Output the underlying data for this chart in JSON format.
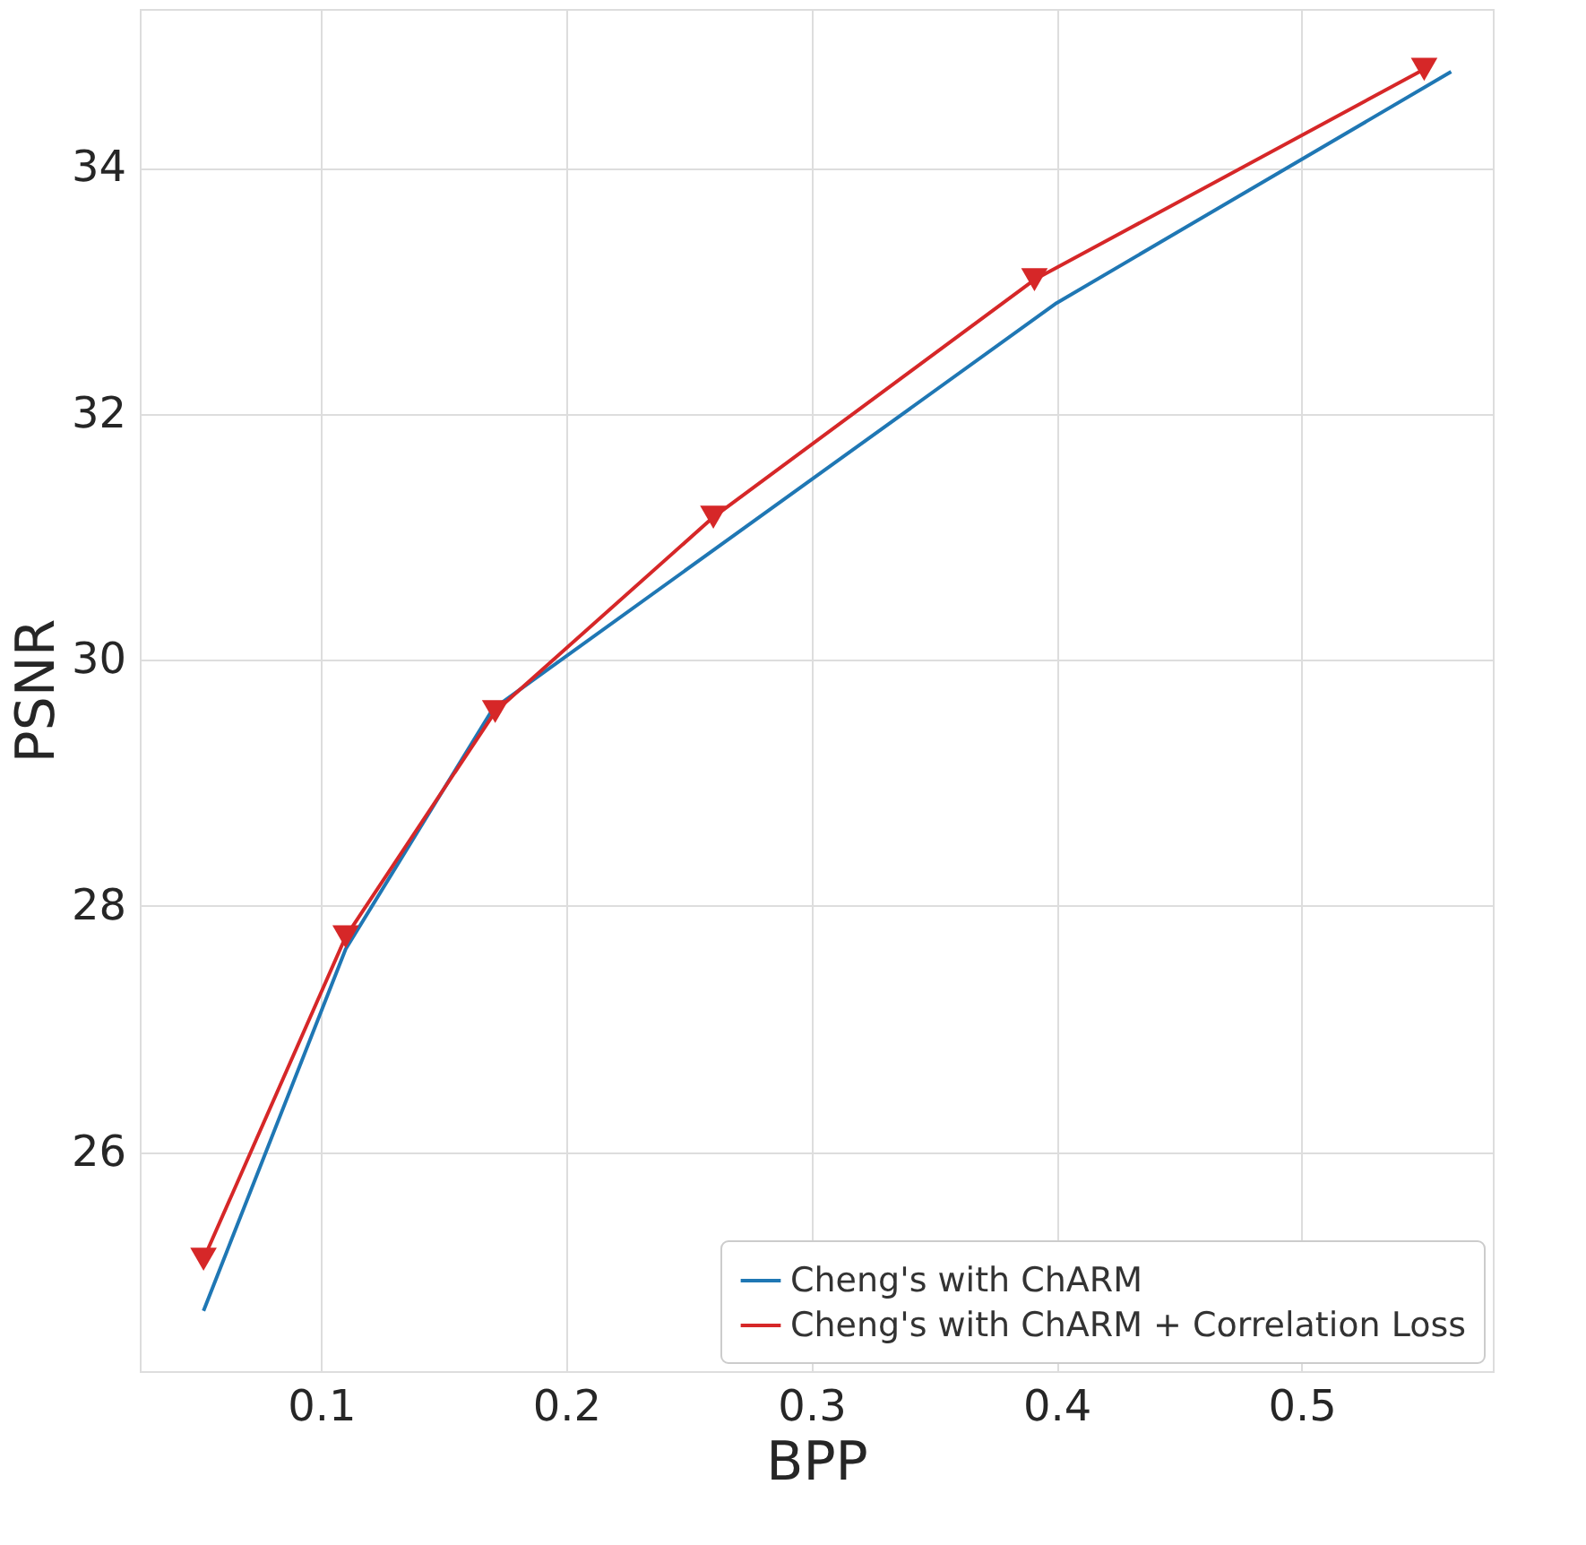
{
  "chart_data": {
    "type": "line",
    "xlabel": "BPP",
    "ylabel": "PSNR",
    "xlim": [
      0.026,
      0.578
    ],
    "ylim": [
      24.22,
      35.29
    ],
    "xticks": [
      0.1,
      0.2,
      0.3,
      0.4,
      0.5
    ],
    "yticks": [
      26,
      28,
      30,
      32,
      34
    ],
    "grid": true,
    "legend": "bottom right",
    "series": [
      {
        "name": "Cheng's with ChARM",
        "color": "#1f77b4",
        "marker": "none",
        "x": [
          0.052,
          0.11,
          0.17,
          0.4,
          0.561
        ],
        "values": [
          24.71,
          27.65,
          29.6,
          32.9,
          34.78
        ]
      },
      {
        "name": "Cheng's with ChARM + Correlation Loss",
        "color": "#d62728",
        "marker": "triangle",
        "x": [
          0.052,
          0.11,
          0.171,
          0.26,
          0.391,
          0.55
        ],
        "values": [
          25.13,
          27.75,
          29.58,
          31.16,
          33.09,
          34.8
        ]
      }
    ]
  }
}
